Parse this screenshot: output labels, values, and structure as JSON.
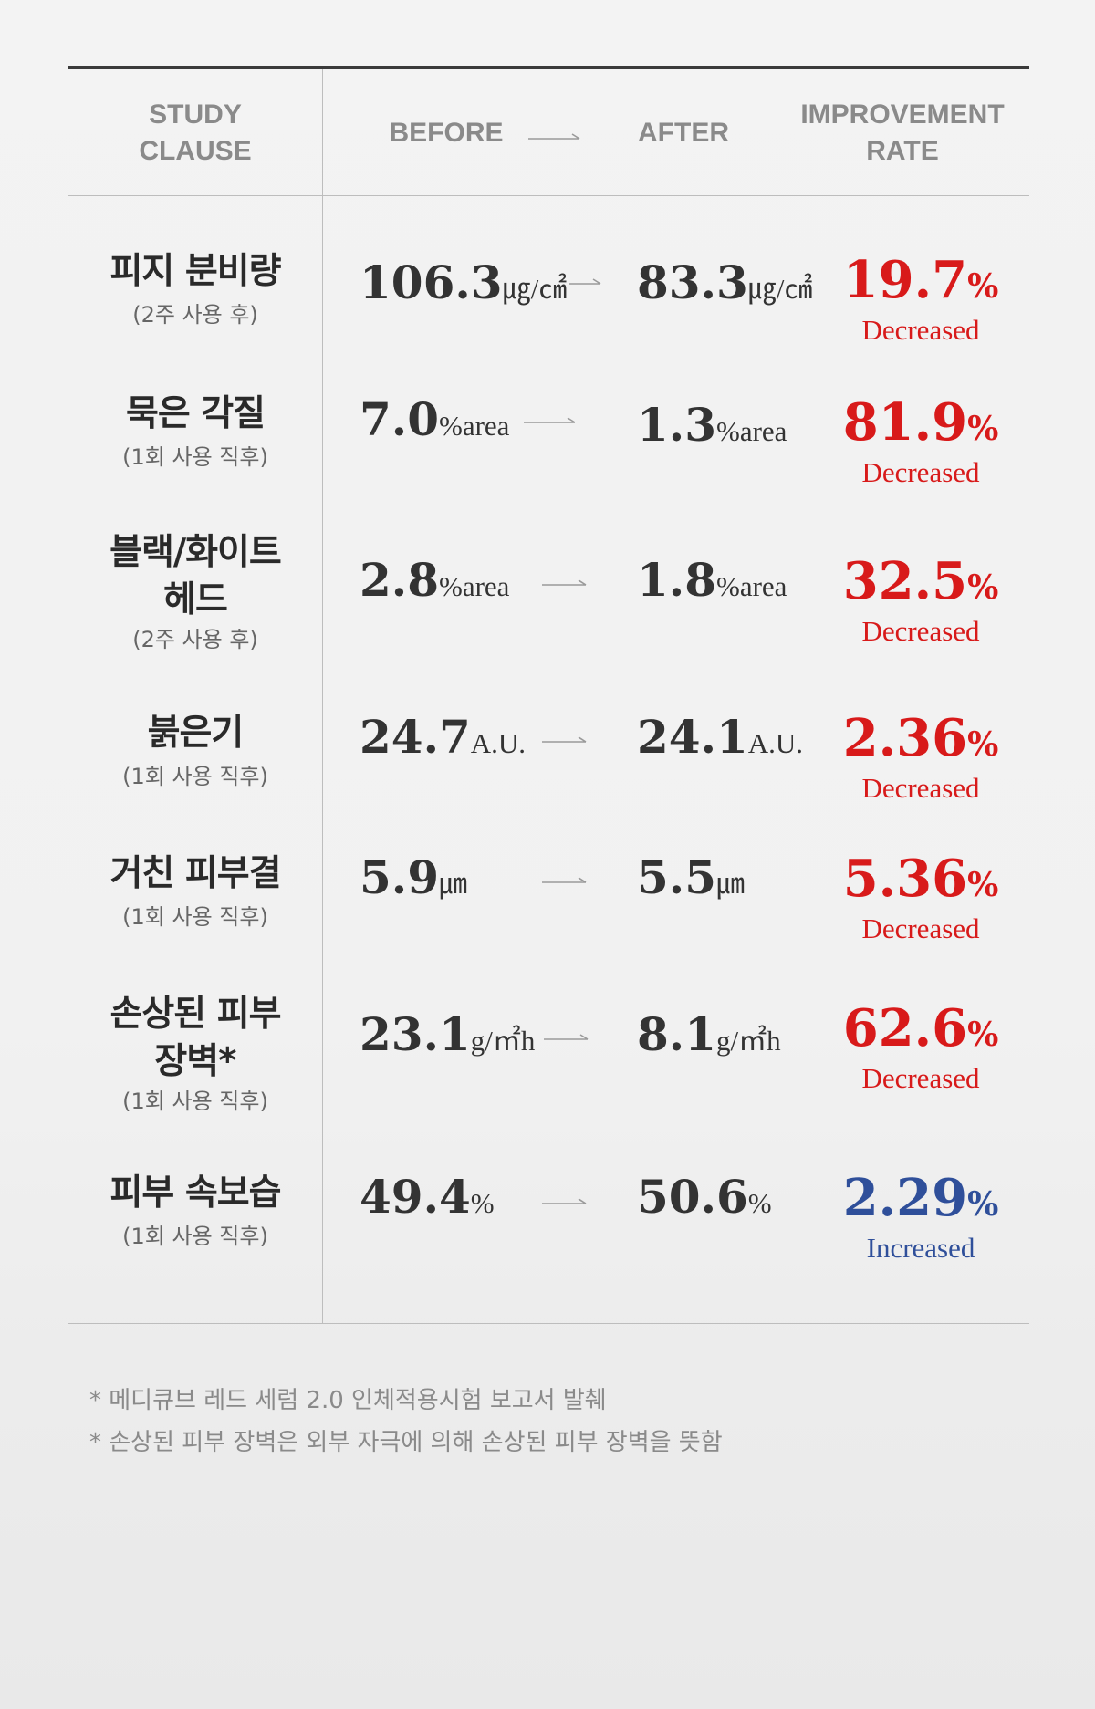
{
  "header": {
    "study_clause_line1": "STUDY",
    "study_clause_line2": "CLAUSE",
    "before": "BEFORE",
    "after": "AFTER",
    "rate_line1": "IMPROVEMENT",
    "rate_line2": "RATE"
  },
  "rows": [
    {
      "title1": "피지 분비량",
      "title2": "",
      "sub": "(2주 사용 후)",
      "before": "106.3",
      "before_unit": "㎍/㎠",
      "after": "83.3",
      "after_unit": "㎍/㎠",
      "rate": "19.7",
      "pct": "%",
      "direction": "Decreased"
    },
    {
      "title1": "묵은 각질",
      "title2": "",
      "sub": "(1회 사용 직후)",
      "before": "7.0",
      "before_unit": "%area",
      "after": "1.3",
      "after_unit": "%area",
      "rate": "81.9",
      "pct": "%",
      "direction": "Decreased"
    },
    {
      "title1": "블랙/화이트",
      "title2": "헤드",
      "sub": "(2주 사용 후)",
      "before": "2.8",
      "before_unit": "%area",
      "after": "1.8",
      "after_unit": "%area",
      "rate": "32.5",
      "pct": "%",
      "direction": "Decreased"
    },
    {
      "title1": "붉은기",
      "title2": "",
      "sub": "(1회 사용 직후)",
      "before": "24.7",
      "before_unit": "A.U.",
      "after": "24.1",
      "after_unit": "A.U.",
      "rate": "2.36",
      "pct": "%",
      "direction": "Decreased"
    },
    {
      "title1": "거친 피부결",
      "title2": "",
      "sub": "(1회 사용 직후)",
      "before": "5.9",
      "before_unit": "㎛",
      "after": "5.5",
      "after_unit": "㎛",
      "rate": "5.36",
      "pct": "%",
      "direction": "Decreased"
    },
    {
      "title1": "손상된 피부",
      "title2": "장벽*",
      "sub": "(1회 사용 직후)",
      "before": "23.1",
      "before_unit": "g/㎡h",
      "after": "8.1",
      "after_unit": "g/㎡h",
      "rate": "62.6",
      "pct": "%",
      "direction": "Decreased"
    },
    {
      "title1": "피부 속보습",
      "title2": "",
      "sub": "(1회 사용 직후)",
      "before": "49.4",
      "before_unit": "%",
      "after": "50.6",
      "after_unit": "%",
      "rate": "2.29",
      "pct": "%",
      "direction": "Increased"
    }
  ],
  "colors": {
    "decreased": "#d81a1a",
    "increased": "#2f4f9a"
  },
  "notes": [
    "* 메디큐브 레드 세럼 2.0 인체적용시험 보고서 발췌",
    "* 손상된 피부 장벽은 외부 자극에 의해 손상된 피부 장벽을 뜻함"
  ]
}
